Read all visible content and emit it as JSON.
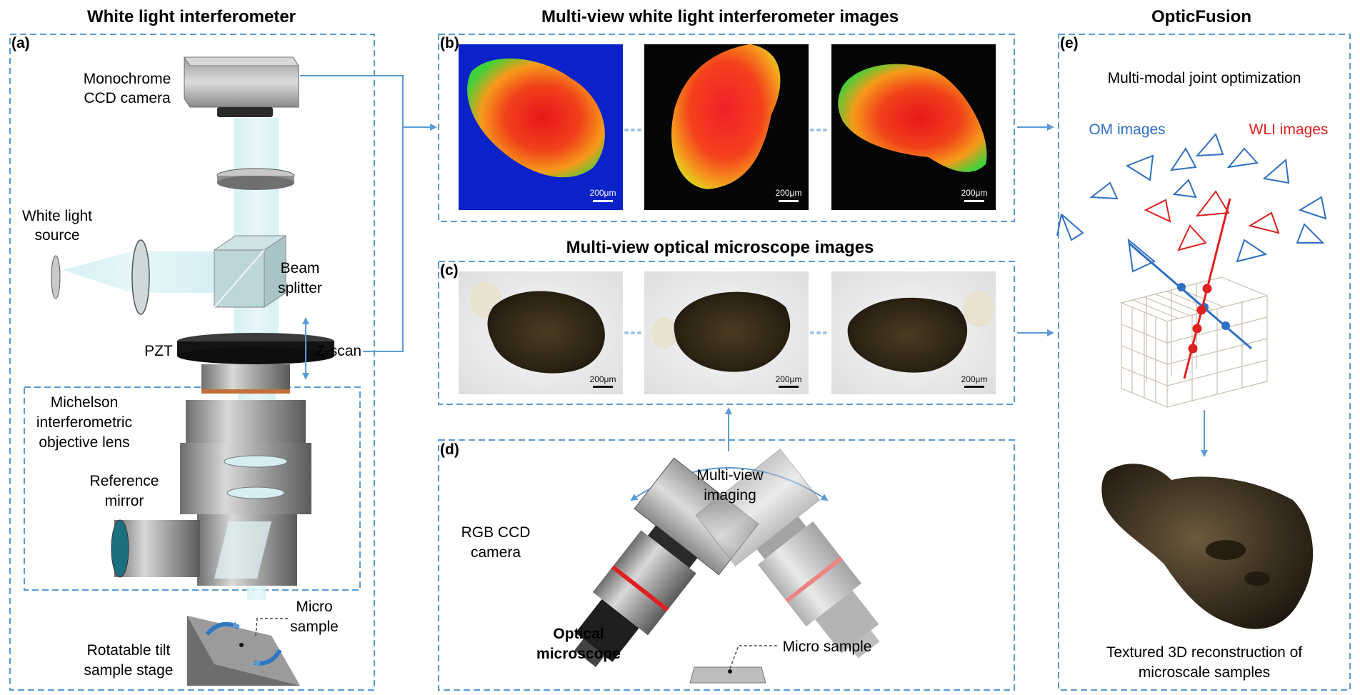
{
  "titles": {
    "wli": "White light interferometer",
    "multiview_wli": "Multi-view white light interferometer images",
    "multiview_om": "Multi-view optical microscope images",
    "opticfusion": "OpticFusion"
  },
  "panels": {
    "a": "(a)",
    "b": "(b)",
    "c": "(c)",
    "d": "(d)",
    "e": "(e)"
  },
  "wli_labels": {
    "camera_line1": "Monochrome",
    "camera_line2": "CCD camera",
    "source_line1": "White light",
    "source_line2": "source",
    "splitter_line1": "Beam",
    "splitter_line2": "splitter",
    "pzt": "PZT",
    "zscan": "Z-scan",
    "michelson_line1": "Michelson",
    "michelson_line2": "interferometric",
    "michelson_line3": "objective lens",
    "mirror_line1": "Reference",
    "mirror_line2": "mirror",
    "micro_line1": "Micro",
    "micro_line2": "sample",
    "stage_line1": "Rotatable tilt",
    "stage_line2": "sample stage"
  },
  "scale_bar": "200μm",
  "om_setup": {
    "multiview_line1": "Multi-view",
    "multiview_line2": "imaging",
    "rgb_line1": "RGB CCD",
    "rgb_line2": "camera",
    "optical_line1": "Optical",
    "optical_line2": "microscope",
    "micro_sample": "Micro sample"
  },
  "fusion": {
    "joint": "Multi-modal joint optimization",
    "om_images": "OM images",
    "wli_images": "WLI images",
    "recon_line1": "Textured 3D reconstruction of",
    "recon_line2": "microscale samples"
  },
  "colors": {
    "accent_blue": "#5b9bd5",
    "om_blue": "#2f6fc4",
    "wli_red": "#e02020"
  }
}
